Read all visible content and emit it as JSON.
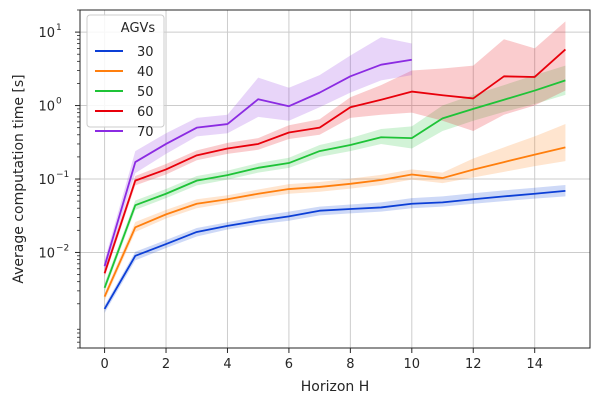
{
  "chart_data": {
    "type": "line",
    "xlabel": "Horizon H",
    "ylabel": "Average computation time [s]",
    "xlim": [
      -0.8,
      15.8
    ],
    "ylim": [
      0.0005,
      20
    ],
    "yscale": "log",
    "grid": true,
    "xticks": [
      0,
      2,
      4,
      6,
      8,
      10,
      12,
      14
    ],
    "xtick_labels": [
      "0",
      "2",
      "4",
      "6",
      "8",
      "10",
      "12",
      "14"
    ],
    "yticks": [
      0.01,
      0.1,
      1,
      10
    ],
    "ytick_labels": [
      {
        "base": "10",
        "exp": "−2"
      },
      {
        "base": "10",
        "exp": "−1"
      },
      {
        "base": "10",
        "exp": "0"
      },
      {
        "base": "10",
        "exp": "1"
      }
    ],
    "legend": {
      "title": "AGVs",
      "position": "top-left"
    },
    "series": [
      {
        "name": "30",
        "color": "#0c3fd6",
        "x": [
          0,
          1,
          2,
          3,
          4,
          5,
          6,
          7,
          8,
          9,
          10,
          11,
          12,
          13,
          14,
          15
        ],
        "y": [
          0.0017,
          0.009,
          0.013,
          0.019,
          0.023,
          0.027,
          0.031,
          0.037,
          0.039,
          0.041,
          0.046,
          0.048,
          0.053,
          0.058,
          0.063,
          0.069
        ],
        "lower": [
          0.0015,
          0.0078,
          0.0115,
          0.0165,
          0.0205,
          0.024,
          0.027,
          0.032,
          0.034,
          0.036,
          0.04,
          0.042,
          0.046,
          0.05,
          0.054,
          0.058
        ],
        "upper": [
          0.0019,
          0.0102,
          0.0148,
          0.0215,
          0.0258,
          0.031,
          0.036,
          0.042,
          0.045,
          0.048,
          0.055,
          0.058,
          0.064,
          0.07,
          0.076,
          0.083
        ]
      },
      {
        "name": "40",
        "color": "#ff7f0e",
        "x": [
          0,
          1,
          2,
          3,
          4,
          5,
          6,
          7,
          8,
          9,
          10,
          11,
          12,
          13,
          14,
          15
        ],
        "y": [
          0.0025,
          0.022,
          0.033,
          0.046,
          0.053,
          0.063,
          0.073,
          0.078,
          0.086,
          0.097,
          0.115,
          0.103,
          0.134,
          0.17,
          0.215,
          0.27
        ],
        "lower": [
          0.0022,
          0.019,
          0.029,
          0.04,
          0.047,
          0.055,
          0.063,
          0.067,
          0.074,
          0.083,
          0.098,
          0.088,
          0.105,
          0.125,
          0.15,
          0.175
        ],
        "upper": [
          0.0028,
          0.026,
          0.038,
          0.053,
          0.06,
          0.072,
          0.085,
          0.091,
          0.101,
          0.114,
          0.135,
          0.122,
          0.19,
          0.27,
          0.38,
          0.56
        ]
      },
      {
        "name": "50",
        "color": "#1ec337",
        "x": [
          0,
          1,
          2,
          3,
          4,
          5,
          6,
          7,
          8,
          9,
          10,
          11,
          12,
          13,
          14,
          15
        ],
        "y": [
          0.0033,
          0.044,
          0.063,
          0.095,
          0.113,
          0.142,
          0.165,
          0.24,
          0.29,
          0.37,
          0.36,
          0.67,
          0.9,
          1.2,
          1.6,
          2.2
        ],
        "lower": [
          0.0029,
          0.038,
          0.055,
          0.082,
          0.098,
          0.122,
          0.142,
          0.2,
          0.24,
          0.3,
          0.26,
          0.45,
          0.62,
          0.82,
          1.05,
          1.4
        ],
        "upper": [
          0.0038,
          0.051,
          0.073,
          0.11,
          0.13,
          0.165,
          0.195,
          0.29,
          0.36,
          0.48,
          0.52,
          1.0,
          1.4,
          1.9,
          2.6,
          3.5
        ]
      },
      {
        "name": "60",
        "color": "#e8000b",
        "x": [
          0,
          1,
          2,
          3,
          4,
          5,
          6,
          7,
          8,
          9,
          10,
          11,
          12,
          13,
          14,
          15
        ],
        "y": [
          0.0052,
          0.095,
          0.135,
          0.21,
          0.26,
          0.3,
          0.43,
          0.5,
          0.95,
          1.2,
          1.55,
          1.38,
          1.25,
          2.5,
          2.45,
          5.8
        ],
        "lower": [
          0.0046,
          0.082,
          0.115,
          0.18,
          0.22,
          0.25,
          0.35,
          0.4,
          0.68,
          0.75,
          0.8,
          0.62,
          0.45,
          0.75,
          1.0,
          1.6
        ],
        "upper": [
          0.006,
          0.11,
          0.16,
          0.245,
          0.31,
          0.36,
          0.54,
          0.65,
          1.3,
          1.9,
          3.0,
          3.2,
          3.5,
          8.0,
          6.0,
          14.0
        ]
      },
      {
        "name": "70",
        "color": "#8b2be2",
        "x": [
          0,
          1,
          2,
          3,
          4,
          5,
          6,
          7,
          8,
          9,
          10
        ],
        "y": [
          0.0065,
          0.17,
          0.3,
          0.5,
          0.56,
          1.22,
          0.98,
          1.5,
          2.5,
          3.6,
          4.2
        ],
        "lower": [
          0.0055,
          0.12,
          0.22,
          0.38,
          0.42,
          0.7,
          0.62,
          0.95,
          1.5,
          2.2,
          2.6
        ],
        "upper": [
          0.0078,
          0.24,
          0.42,
          0.68,
          0.75,
          2.4,
          1.75,
          2.6,
          4.8,
          8.5,
          7.0
        ]
      }
    ]
  }
}
